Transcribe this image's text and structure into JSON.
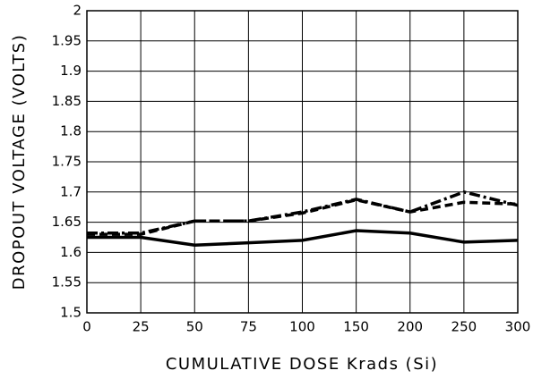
{
  "chart_data": {
    "type": "line",
    "xlabel": "CUMULATIVE DOSE Krads (Si)",
    "ylabel": "DROPOUT VOLTAGE (VOLTS)",
    "categories": [
      "0",
      "25",
      "50",
      "75",
      "100",
      "150",
      "200",
      "250",
      "300"
    ],
    "series": [
      {
        "color": "#000000",
        "style": "solid",
        "values": [
          1.625,
          1.625,
          1.612,
          1.616,
          1.62,
          1.636,
          1.632,
          1.617,
          1.62
        ]
      },
      {
        "color": "#000000",
        "style": "dashed",
        "values": [
          1.63,
          1.63,
          1.652,
          1.652,
          1.665,
          1.687,
          1.667,
          1.683,
          1.68
        ]
      },
      {
        "color": "#000000",
        "style": "dashdot",
        "values": [
          1.632,
          1.632,
          1.652,
          1.652,
          1.667,
          1.688,
          1.667,
          1.7,
          1.678
        ]
      }
    ],
    "ylim": [
      1.5,
      2
    ],
    "yticks": [
      1.5,
      1.55,
      1.6,
      1.65,
      1.7,
      1.75,
      1.8,
      1.85,
      1.9,
      1.95,
      2
    ],
    "grid": true
  }
}
